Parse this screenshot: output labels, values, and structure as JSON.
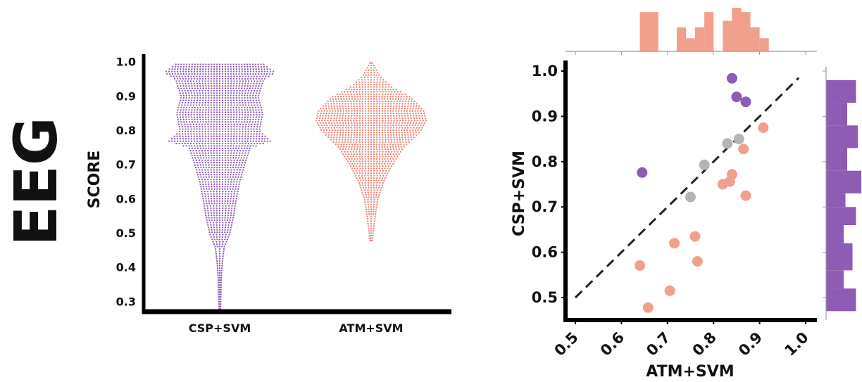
{
  "panel_label": "EEG",
  "colors": {
    "csp": "#8e5bb5",
    "atm": "#f0a08c",
    "atm_swarm": "#f07f6f",
    "gray": "#b4b4b4",
    "axis": "#000000"
  },
  "chart_data": [
    {
      "type": "swarm",
      "ylabel": "SCORE",
      "ylim": [
        0.27,
        1.03
      ],
      "yticks": [
        "0.3",
        "0.4",
        "0.5",
        "0.6",
        "0.7",
        "0.8",
        "0.9",
        "1.0"
      ],
      "categories": [
        "CSP+SVM",
        "ATM+SVM"
      ],
      "series": [
        {
          "category": "CSP+SVM",
          "range": [
            0.28,
            1.0
          ],
          "width_profile": [
            [
              0.28,
              0.01
            ],
            [
              0.32,
              0.02
            ],
            [
              0.38,
              0.03
            ],
            [
              0.42,
              0.05
            ],
            [
              0.46,
              0.08
            ],
            [
              0.5,
              0.18
            ],
            [
              0.55,
              0.25
            ],
            [
              0.6,
              0.3
            ],
            [
              0.65,
              0.36
            ],
            [
              0.7,
              0.45
            ],
            [
              0.75,
              0.55
            ],
            [
              0.77,
              0.92
            ],
            [
              0.8,
              0.72
            ],
            [
              0.85,
              0.78
            ],
            [
              0.9,
              0.7
            ],
            [
              0.95,
              0.8
            ],
            [
              0.97,
              1.0
            ],
            [
              1.0,
              0.75
            ]
          ]
        },
        {
          "category": "ATM+SVM",
          "range": [
            0.48,
            1.0
          ],
          "width_profile": [
            [
              0.48,
              0.02
            ],
            [
              0.52,
              0.05
            ],
            [
              0.56,
              0.08
            ],
            [
              0.6,
              0.12
            ],
            [
              0.65,
              0.22
            ],
            [
              0.7,
              0.38
            ],
            [
              0.75,
              0.58
            ],
            [
              0.8,
              0.9
            ],
            [
              0.83,
              1.0
            ],
            [
              0.86,
              0.95
            ],
            [
              0.9,
              0.7
            ],
            [
              0.93,
              0.35
            ],
            [
              0.96,
              0.15
            ],
            [
              0.99,
              0.05
            ],
            [
              1.0,
              0.02
            ]
          ]
        }
      ]
    },
    {
      "type": "scatter",
      "xlabel": "ATM+SVM",
      "ylabel": "CSP+SVM",
      "xlim": [
        0.47,
        1.02
      ],
      "ylim": [
        0.45,
        1.02
      ],
      "xticks": [
        "0.5",
        "0.6",
        "0.7",
        "0.8",
        "0.9",
        "1.0"
      ],
      "yticks": [
        "0.5",
        "0.6",
        "0.7",
        "0.8",
        "0.9",
        "1.0"
      ],
      "diagonal": true,
      "series": [
        {
          "group": "csp_better",
          "color": "#8e5bb5",
          "points": [
            [
              0.84,
              0.984
            ],
            [
              0.85,
              0.943
            ],
            [
              0.87,
              0.932
            ],
            [
              0.645,
              0.776
            ]
          ]
        },
        {
          "group": "similar",
          "color": "#b4b4b4",
          "points": [
            [
              0.83,
              0.84
            ],
            [
              0.855,
              0.85
            ],
            [
              0.78,
              0.793
            ],
            [
              0.75,
              0.722
            ]
          ]
        },
        {
          "group": "atm_better",
          "color": "#f0a08c",
          "points": [
            [
              0.908,
              0.875
            ],
            [
              0.865,
              0.828
            ],
            [
              0.84,
              0.772
            ],
            [
              0.82,
              0.75
            ],
            [
              0.835,
              0.756
            ],
            [
              0.87,
              0.725
            ],
            [
              0.76,
              0.635
            ],
            [
              0.715,
              0.62
            ],
            [
              0.765,
              0.58
            ],
            [
              0.64,
              0.571
            ],
            [
              0.705,
              0.515
            ],
            [
              0.658,
              0.478
            ]
          ]
        }
      ]
    },
    {
      "type": "histogram",
      "of": "ATM+SVM",
      "orientation": "vertical",
      "color": "#f0a08c",
      "bins": [
        [
          0.64,
          0.68,
          0.9
        ],
        [
          0.72,
          0.74,
          0.55
        ],
        [
          0.74,
          0.76,
          0.3
        ],
        [
          0.76,
          0.78,
          0.55
        ],
        [
          0.78,
          0.8,
          0.9
        ],
        [
          0.82,
          0.84,
          0.7
        ],
        [
          0.84,
          0.86,
          1.0
        ],
        [
          0.86,
          0.88,
          0.9
        ],
        [
          0.88,
          0.9,
          0.55
        ],
        [
          0.9,
          0.92,
          0.3
        ]
      ]
    },
    {
      "type": "histogram",
      "of": "CSP+SVM",
      "orientation": "horizontal",
      "color": "#8e5bb5",
      "bins": [
        [
          0.47,
          0.52,
          0.85
        ],
        [
          0.52,
          0.56,
          0.5
        ],
        [
          0.56,
          0.62,
          0.75
        ],
        [
          0.62,
          0.66,
          0.5
        ],
        [
          0.66,
          0.7,
          0.85
        ],
        [
          0.7,
          0.73,
          0.55
        ],
        [
          0.73,
          0.78,
          1.0
        ],
        [
          0.78,
          0.83,
          0.6
        ],
        [
          0.83,
          0.88,
          0.9
        ],
        [
          0.88,
          0.93,
          0.6
        ],
        [
          0.93,
          0.98,
          0.85
        ]
      ]
    }
  ]
}
